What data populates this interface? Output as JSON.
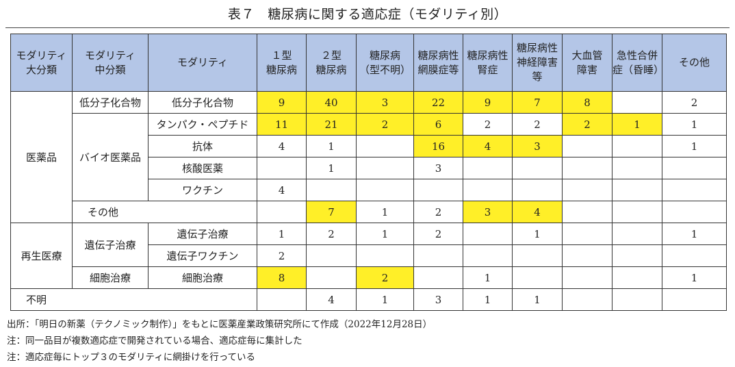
{
  "title": "表７　糖尿病に関する適応症（モダリティ別）",
  "colors": {
    "header_bg": "#b4c6e7",
    "highlight": "#ffef28",
    "border": "#333333"
  },
  "headers": {
    "major": "モダリティ\n大分類",
    "minor": "モダリティ\n中分類",
    "modality": "モダリティ",
    "cols": [
      "１型\n糖尿病",
      "２型\n糖尿病",
      "糖尿病\n（型不明）",
      "糖尿病性\n網膜症等",
      "糖尿病性\n腎症",
      "糖尿病性\n神経障害\n等",
      "大血管\n障害",
      "急性合併\n症（昏睡）",
      "その他"
    ]
  },
  "groups": {
    "pharma": "医薬品",
    "regen": "再生医療",
    "small_molecule": "低分子化合物",
    "bio": "バイオ医薬品",
    "gene": "遺伝子治療",
    "cell": "細胞治療",
    "other": "その他",
    "unknown": "不明"
  },
  "rows": [
    {
      "label": "低分子化合物",
      "values": [
        "9",
        "40",
        "3",
        "22",
        "9",
        "7",
        "8",
        "",
        "2"
      ],
      "highlight": [
        1,
        1,
        1,
        1,
        1,
        1,
        1,
        0,
        0
      ]
    },
    {
      "label": "タンパク・ペプチド",
      "values": [
        "11",
        "21",
        "2",
        "6",
        "2",
        "2",
        "2",
        "1",
        "1"
      ],
      "highlight": [
        1,
        1,
        1,
        1,
        0,
        0,
        1,
        1,
        0
      ]
    },
    {
      "label": "抗体",
      "values": [
        "4",
        "1",
        "",
        "16",
        "4",
        "3",
        "",
        "",
        "1"
      ],
      "highlight": [
        0,
        0,
        0,
        1,
        1,
        1,
        0,
        0,
        0
      ]
    },
    {
      "label": "核酸医薬",
      "values": [
        "",
        "1",
        "",
        "3",
        "",
        "",
        "",
        "",
        ""
      ],
      "highlight": [
        0,
        0,
        0,
        0,
        0,
        0,
        0,
        0,
        0
      ]
    },
    {
      "label": "ワクチン",
      "values": [
        "4",
        "",
        "",
        "",
        "",
        "",
        "",
        "",
        ""
      ],
      "highlight": [
        0,
        0,
        0,
        0,
        0,
        0,
        0,
        0,
        0
      ]
    },
    {
      "label": "その他",
      "values": [
        "",
        "7",
        "1",
        "2",
        "3",
        "4",
        "",
        "",
        ""
      ],
      "highlight": [
        0,
        1,
        0,
        0,
        1,
        1,
        0,
        0,
        0
      ]
    },
    {
      "label": "遺伝子治療",
      "values": [
        "1",
        "2",
        "1",
        "2",
        "",
        "1",
        "",
        "",
        "1"
      ],
      "highlight": [
        0,
        0,
        0,
        0,
        0,
        0,
        0,
        0,
        0
      ]
    },
    {
      "label": "遺伝子ワクチン",
      "values": [
        "2",
        "",
        "",
        "",
        "",
        "",
        "",
        "",
        ""
      ],
      "highlight": [
        0,
        0,
        0,
        0,
        0,
        0,
        0,
        0,
        0
      ]
    },
    {
      "label": "細胞治療",
      "values": [
        "8",
        "",
        "2",
        "",
        "1",
        "",
        "",
        "",
        "1"
      ],
      "highlight": [
        1,
        0,
        1,
        0,
        0,
        0,
        0,
        0,
        0
      ]
    },
    {
      "label": "不明",
      "values": [
        "",
        "4",
        "1",
        "3",
        "1",
        "1",
        "",
        "",
        ""
      ],
      "highlight": [
        0,
        0,
        0,
        0,
        0,
        0,
        0,
        0,
        0
      ]
    }
  ],
  "notes": [
    "出所：「明日の新薬（テクノミック制作）」をもとに医薬産業政策研究所にて作成（2022年12月28日）",
    "注：同一品目が複数適応症で開発されている場合、適応症毎に集計した",
    "注：適応症毎にトップ３のモダリティに網掛けを行っている"
  ]
}
